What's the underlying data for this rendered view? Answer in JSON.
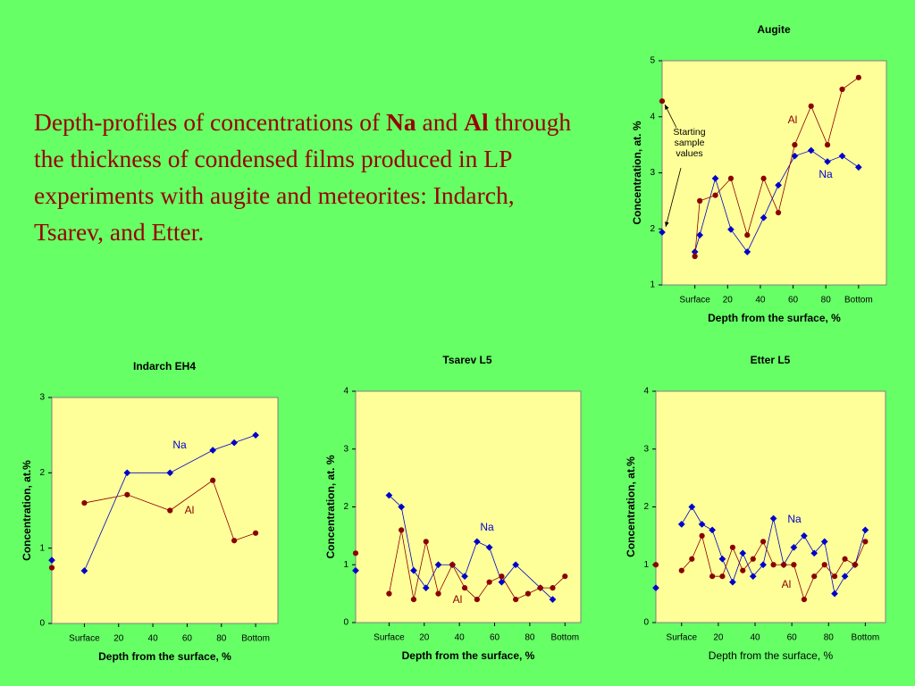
{
  "heading": [
    "Depth-profiles of concentrations of ",
    "Na",
    " and ",
    "Al",
    " through the thickness of condensed films produced in LP experiments with augite and meteorites: Indarch, Tsarev, and Etter."
  ],
  "chart_data": [
    {
      "type": "line",
      "title": "Augite",
      "xlabel": "Depth from the surface, %",
      "ylabel": "Concentration, at. %",
      "annotations": [
        "Starting sample values"
      ],
      "xlim": [
        -20,
        117
      ],
      "xticks": [
        {
          "value": 0,
          "label": "Surface"
        },
        20,
        40,
        60,
        80,
        {
          "value": 100,
          "label": "Bottom"
        }
      ],
      "ylim": [
        1,
        5
      ],
      "yticks": [
        1,
        2,
        3,
        4,
        5
      ],
      "start_x": -20,
      "series": [
        {
          "name": "Na",
          "color": "#0000cc",
          "marker": "diamond",
          "start": 1.94,
          "x": [
            0,
            3,
            12.5,
            22,
            32,
            42,
            51,
            61,
            71,
            81,
            90,
            100
          ],
          "values": [
            1.59,
            1.89,
            2.9,
            1.99,
            1.59,
            2.2,
            2.78,
            3.3,
            3.4,
            3.2,
            3.3,
            3.1
          ]
        },
        {
          "name": "Al",
          "color": "#8b0000",
          "marker": "circle",
          "start": 4.28,
          "x": [
            0,
            3,
            12.5,
            22,
            32,
            42,
            51,
            61,
            71,
            81,
            90,
            100
          ],
          "values": [
            1.51,
            2.5,
            2.6,
            2.9,
            1.89,
            2.9,
            2.29,
            3.5,
            4.19,
            3.5,
            4.49,
            4.7
          ]
        }
      ]
    },
    {
      "type": "line",
      "title": "Indarch EH4",
      "xlabel": "Depth from the surface, %",
      "ylabel": "Concentration, at.%",
      "xlim": [
        -19,
        113
      ],
      "xticks": [
        {
          "value": 0,
          "label": "Surface"
        },
        20,
        40,
        60,
        80,
        {
          "value": 100,
          "label": "Bottom"
        }
      ],
      "ylim": [
        0,
        3
      ],
      "yticks": [
        0,
        1,
        2,
        3
      ],
      "start_x": -19,
      "series": [
        {
          "name": "Na",
          "color": "#0000cc",
          "marker": "diamond",
          "start": 0.84,
          "x": [
            0,
            25,
            50,
            75,
            87.5,
            100
          ],
          "values": [
            0.7,
            2.0,
            2.0,
            2.3,
            2.4,
            2.5
          ]
        },
        {
          "name": "Al",
          "color": "#8b0000",
          "marker": "circle",
          "start": 0.74,
          "x": [
            0,
            25,
            50,
            75,
            87.5,
            100
          ],
          "values": [
            1.6,
            1.71,
            1.5,
            1.9,
            1.1,
            1.2
          ]
        }
      ]
    },
    {
      "type": "line",
      "title": "Tsarev L5",
      "xlabel": "Depth from the surface, %",
      "ylabel": "Concentration, at. %",
      "xlim": [
        -19,
        109
      ],
      "xticks": [
        {
          "value": 0,
          "label": "Surface"
        },
        20,
        40,
        60,
        80,
        {
          "value": 100,
          "label": "Bottom"
        }
      ],
      "ylim": [
        0,
        4
      ],
      "yticks": [
        0,
        1,
        2,
        3,
        4
      ],
      "start_x": -19,
      "series": [
        {
          "name": "Na",
          "color": "#0000cc",
          "marker": "diamond",
          "start": 0.9,
          "x": [
            0,
            7,
            14,
            21,
            28,
            36,
            43,
            50,
            57,
            64,
            72,
            86,
            93
          ],
          "values": [
            2.2,
            2.0,
            0.9,
            0.6,
            1.0,
            1.0,
            0.8,
            1.4,
            1.3,
            0.7,
            1.0,
            0.6,
            0.4
          ]
        },
        {
          "name": "Al",
          "color": "#8b0000",
          "marker": "circle",
          "start": 1.2,
          "x": [
            0,
            7,
            14,
            21,
            28,
            36,
            43,
            50,
            57,
            64,
            72,
            79,
            86,
            93,
            100
          ],
          "values": [
            0.5,
            1.6,
            0.4,
            1.4,
            0.5,
            1.0,
            0.6,
            0.4,
            0.7,
            0.8,
            0.4,
            0.5,
            0.6,
            0.6,
            0.8
          ]
        }
      ]
    },
    {
      "type": "line",
      "title": "Etter L5",
      "xlabel": "Depth from the surface, %",
      "ylabel": "Concentration, at.%",
      "xlim": [
        -14,
        111
      ],
      "xticks": [
        {
          "value": 0,
          "label": "Surface"
        },
        20,
        40,
        60,
        80,
        {
          "value": 100,
          "label": "Bottom"
        }
      ],
      "ylim": [
        0,
        4
      ],
      "yticks": [
        0,
        1,
        2,
        3,
        4
      ],
      "start_x": -14,
      "series": [
        {
          "name": "Na",
          "color": "#0000cc",
          "marker": "diamond",
          "start": 0.6,
          "x": [
            0,
            5.6,
            11.1,
            16.7,
            22.2,
            27.8,
            33.3,
            38.9,
            44.4,
            50,
            55.6,
            61.1,
            66.7,
            72.2,
            77.8,
            83.3,
            88.9,
            94.4,
            100
          ],
          "values": [
            1.7,
            2.0,
            1.7,
            1.6,
            1.1,
            0.7,
            1.2,
            0.8,
            1.0,
            1.8,
            1.0,
            1.3,
            1.5,
            1.2,
            1.4,
            0.5,
            0.8,
            1.0,
            1.6
          ]
        },
        {
          "name": "Al",
          "color": "#8b0000",
          "marker": "circle",
          "start": 1.0,
          "x": [
            0,
            5.6,
            11.1,
            16.7,
            22.2,
            27.8,
            33.3,
            38.9,
            44.4,
            50,
            55.6,
            61.1,
            66.7,
            72.2,
            77.8,
            83.3,
            88.9,
            94.4,
            100
          ],
          "values": [
            0.9,
            1.1,
            1.5,
            0.8,
            0.8,
            1.3,
            0.9,
            1.1,
            1.4,
            1.0,
            1.0,
            1.0,
            0.4,
            0.8,
            1.0,
            0.8,
            1.1,
            1.0,
            1.4
          ]
        }
      ]
    }
  ]
}
